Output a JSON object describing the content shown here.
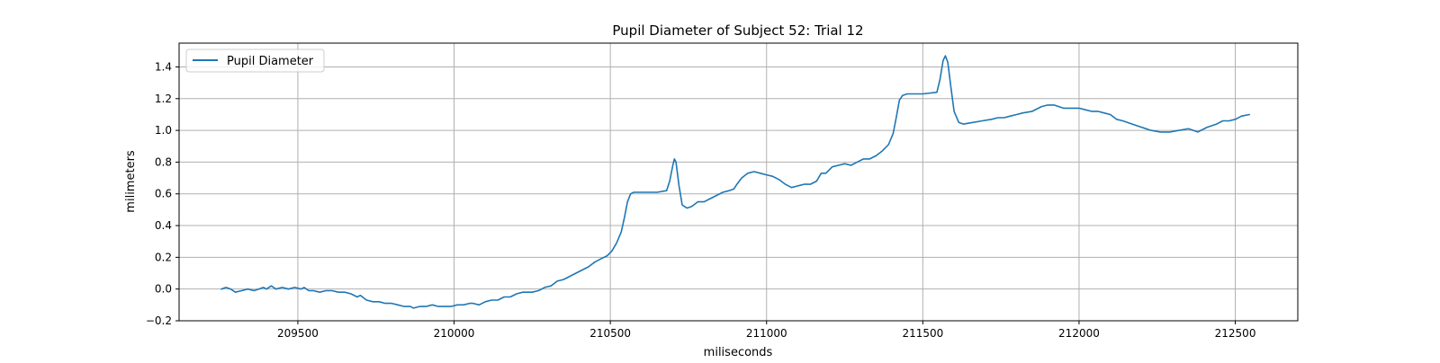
{
  "chart_data": {
    "type": "line",
    "title": "Pupil Diameter of Subject 52: Trial 12",
    "xlabel": "miliseconds",
    "ylabel": "milimeters",
    "xlim": [
      209120,
      212700
    ],
    "ylim": [
      -0.2,
      1.55
    ],
    "x_ticks": [
      209500,
      210000,
      210500,
      211000,
      211500,
      212000,
      212500
    ],
    "x_tick_labels": [
      "209500",
      "210000",
      "210500",
      "211000",
      "211500",
      "212000",
      "212500"
    ],
    "y_ticks": [
      -0.2,
      0.0,
      0.2,
      0.4,
      0.6,
      0.8,
      1.0,
      1.2,
      1.4
    ],
    "y_tick_labels": [
      "−0.2",
      "0.0",
      "0.2",
      "0.4",
      "0.6",
      "0.8",
      "1.0",
      "1.2",
      "1.4"
    ],
    "grid": true,
    "legend_position": "top-left",
    "series": [
      {
        "name": "Pupil Diameter",
        "color": "#1f77b4",
        "points": [
          [
            209255,
            0.0
          ],
          [
            209270,
            0.01
          ],
          [
            209285,
            0.0
          ],
          [
            209300,
            -0.02
          ],
          [
            209320,
            -0.01
          ],
          [
            209340,
            0.0
          ],
          [
            209360,
            -0.01
          ],
          [
            209375,
            0.0
          ],
          [
            209390,
            0.01
          ],
          [
            209400,
            0.0
          ],
          [
            209415,
            0.02
          ],
          [
            209430,
            0.0
          ],
          [
            209450,
            0.01
          ],
          [
            209470,
            0.0
          ],
          [
            209490,
            0.01
          ],
          [
            209510,
            0.0
          ],
          [
            209520,
            0.01
          ],
          [
            209535,
            -0.01
          ],
          [
            209550,
            -0.01
          ],
          [
            209570,
            -0.02
          ],
          [
            209590,
            -0.01
          ],
          [
            209610,
            -0.01
          ],
          [
            209630,
            -0.02
          ],
          [
            209650,
            -0.02
          ],
          [
            209670,
            -0.03
          ],
          [
            209690,
            -0.05
          ],
          [
            209700,
            -0.04
          ],
          [
            209720,
            -0.07
          ],
          [
            209740,
            -0.08
          ],
          [
            209760,
            -0.08
          ],
          [
            209780,
            -0.09
          ],
          [
            209800,
            -0.09
          ],
          [
            209820,
            -0.1
          ],
          [
            209840,
            -0.11
          ],
          [
            209860,
            -0.11
          ],
          [
            209870,
            -0.12
          ],
          [
            209890,
            -0.11
          ],
          [
            209910,
            -0.11
          ],
          [
            209930,
            -0.1
          ],
          [
            209950,
            -0.11
          ],
          [
            209970,
            -0.11
          ],
          [
            209990,
            -0.11
          ],
          [
            210010,
            -0.1
          ],
          [
            210030,
            -0.1
          ],
          [
            210050,
            -0.09
          ],
          [
            210060,
            -0.09
          ],
          [
            210080,
            -0.1
          ],
          [
            210100,
            -0.08
          ],
          [
            210120,
            -0.07
          ],
          [
            210140,
            -0.07
          ],
          [
            210160,
            -0.05
          ],
          [
            210180,
            -0.05
          ],
          [
            210200,
            -0.03
          ],
          [
            210220,
            -0.02
          ],
          [
            210250,
            -0.02
          ],
          [
            210270,
            -0.01
          ],
          [
            210290,
            0.01
          ],
          [
            210310,
            0.02
          ],
          [
            210330,
            0.05
          ],
          [
            210350,
            0.06
          ],
          [
            210370,
            0.08
          ],
          [
            210390,
            0.1
          ],
          [
            210410,
            0.12
          ],
          [
            210430,
            0.14
          ],
          [
            210450,
            0.17
          ],
          [
            210470,
            0.19
          ],
          [
            210490,
            0.21
          ],
          [
            210505,
            0.24
          ],
          [
            210520,
            0.29
          ],
          [
            210535,
            0.36
          ],
          [
            210545,
            0.45
          ],
          [
            210555,
            0.55
          ],
          [
            210565,
            0.6
          ],
          [
            210575,
            0.61
          ],
          [
            210600,
            0.61
          ],
          [
            210650,
            0.61
          ],
          [
            210680,
            0.62
          ],
          [
            210690,
            0.68
          ],
          [
            210700,
            0.78
          ],
          [
            210705,
            0.82
          ],
          [
            210710,
            0.8
          ],
          [
            210720,
            0.65
          ],
          [
            210730,
            0.53
          ],
          [
            210745,
            0.51
          ],
          [
            210760,
            0.52
          ],
          [
            210780,
            0.55
          ],
          [
            210800,
            0.55
          ],
          [
            210820,
            0.57
          ],
          [
            210840,
            0.59
          ],
          [
            210860,
            0.61
          ],
          [
            210880,
            0.62
          ],
          [
            210895,
            0.63
          ],
          [
            210905,
            0.66
          ],
          [
            210920,
            0.7
          ],
          [
            210940,
            0.73
          ],
          [
            210960,
            0.74
          ],
          [
            210980,
            0.73
          ],
          [
            211000,
            0.72
          ],
          [
            211020,
            0.71
          ],
          [
            211040,
            0.69
          ],
          [
            211060,
            0.66
          ],
          [
            211080,
            0.64
          ],
          [
            211100,
            0.65
          ],
          [
            211120,
            0.66
          ],
          [
            211140,
            0.66
          ],
          [
            211160,
            0.68
          ],
          [
            211175,
            0.73
          ],
          [
            211190,
            0.73
          ],
          [
            211210,
            0.77
          ],
          [
            211230,
            0.78
          ],
          [
            211250,
            0.79
          ],
          [
            211270,
            0.78
          ],
          [
            211290,
            0.8
          ],
          [
            211310,
            0.82
          ],
          [
            211330,
            0.82
          ],
          [
            211350,
            0.84
          ],
          [
            211370,
            0.87
          ],
          [
            211390,
            0.91
          ],
          [
            211405,
            0.98
          ],
          [
            211415,
            1.08
          ],
          [
            211425,
            1.19
          ],
          [
            211435,
            1.22
          ],
          [
            211450,
            1.23
          ],
          [
            211500,
            1.23
          ],
          [
            211545,
            1.24
          ],
          [
            211555,
            1.32
          ],
          [
            211565,
            1.44
          ],
          [
            211572,
            1.47
          ],
          [
            211580,
            1.43
          ],
          [
            211590,
            1.27
          ],
          [
            211600,
            1.12
          ],
          [
            211615,
            1.05
          ],
          [
            211630,
            1.04
          ],
          [
            211660,
            1.05
          ],
          [
            211690,
            1.06
          ],
          [
            211720,
            1.07
          ],
          [
            211740,
            1.08
          ],
          [
            211760,
            1.08
          ],
          [
            211780,
            1.09
          ],
          [
            211800,
            1.1
          ],
          [
            211820,
            1.11
          ],
          [
            211850,
            1.12
          ],
          [
            211880,
            1.15
          ],
          [
            211900,
            1.16
          ],
          [
            211920,
            1.16
          ],
          [
            211950,
            1.14
          ],
          [
            211970,
            1.14
          ],
          [
            212000,
            1.14
          ],
          [
            212020,
            1.13
          ],
          [
            212040,
            1.12
          ],
          [
            212060,
            1.12
          ],
          [
            212080,
            1.11
          ],
          [
            212100,
            1.1
          ],
          [
            212120,
            1.07
          ],
          [
            212140,
            1.06
          ],
          [
            212170,
            1.04
          ],
          [
            212200,
            1.02
          ],
          [
            212230,
            1.0
          ],
          [
            212260,
            0.99
          ],
          [
            212290,
            0.99
          ],
          [
            212320,
            1.0
          ],
          [
            212350,
            1.01
          ],
          [
            212380,
            0.99
          ],
          [
            212410,
            1.02
          ],
          [
            212440,
            1.04
          ],
          [
            212460,
            1.06
          ],
          [
            212480,
            1.06
          ],
          [
            212500,
            1.07
          ],
          [
            212520,
            1.09
          ],
          [
            212545,
            1.1
          ]
        ]
      }
    ]
  }
}
